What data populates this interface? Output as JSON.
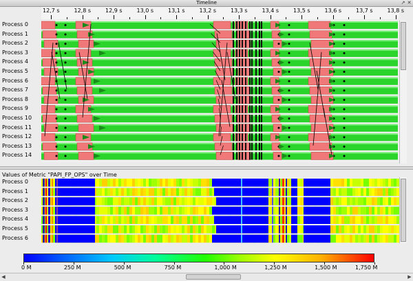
{
  "window": {
    "title": "Timeline"
  },
  "timeline": {
    "ticks": [
      "12,7 s",
      "12,8 s",
      "12,9 s",
      "13,0 s",
      "13,1 s",
      "13,2 s",
      "13,3 s",
      "13,4 s",
      "13,5 s",
      "13,6 s",
      "13,7 s",
      "13,8 s"
    ],
    "processes": [
      "Process 0",
      "Process 1",
      "Process 2",
      "Process 3",
      "Process 4",
      "Process 5",
      "Process 6",
      "Process 7",
      "Process 8",
      "Process 9",
      "Process 10",
      "Process 11",
      "Process 12",
      "Process 13",
      "Process 14"
    ]
  },
  "metric": {
    "title": "Values of Metric \"PAPI_FP_OPS\" over Time",
    "processes": [
      "Process 0",
      "Process 1",
      "Process 2",
      "Process 3",
      "Process 4",
      "Process 5",
      "Process 6"
    ]
  },
  "legend": {
    "labels": [
      "0 M",
      "250 M",
      "500 M",
      "750 M",
      "1,000 M",
      "1,250 M",
      "1,500 M",
      "1,750 M"
    ]
  },
  "colors": {
    "state_green": "#2ad42a",
    "state_red": "#f07878",
    "message_line": "#000000",
    "metric_low": "#0000ff",
    "metric_high": "#ff0000"
  }
}
